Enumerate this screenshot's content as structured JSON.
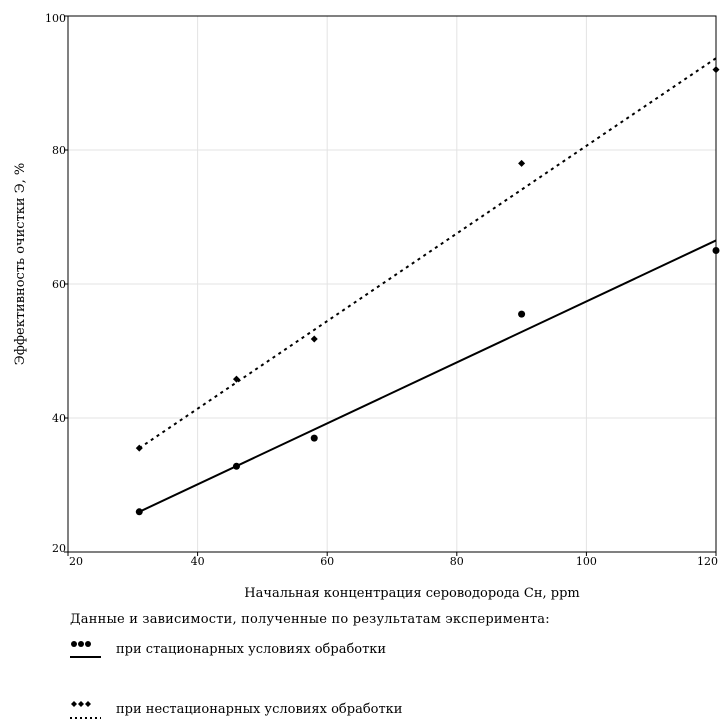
{
  "chart_data": {
    "type": "scatter",
    "xlabel": "Начальная концентрация сероводорода Сн, ppm",
    "ylabel": "Эффективность очистки Э, %",
    "xlim": [
      20,
      120
    ],
    "ylim": [
      20,
      100
    ],
    "x_ticks": [
      "20",
      "40",
      "60",
      "80",
      "100",
      "120"
    ],
    "y_ticks": [
      "20",
      "40",
      "60",
      "80",
      "100"
    ],
    "grid": true,
    "series": [
      {
        "name": "при стационарных условиях обработки",
        "marker": "circle",
        "line": "solid",
        "color": "#000000",
        "points": [
          [
            31,
            26
          ],
          [
            46,
            32.8
          ],
          [
            58,
            37
          ],
          [
            90,
            55.5
          ],
          [
            120,
            65
          ]
        ],
        "fit": [
          [
            31,
            26
          ],
          [
            120,
            66.5
          ]
        ]
      },
      {
        "name": "при нестационарных условиях обработки",
        "marker": "diamond",
        "line": "dotted",
        "color": "#000000",
        "points": [
          [
            31,
            35.5
          ],
          [
            46,
            45.8
          ],
          [
            58,
            51.8
          ],
          [
            90,
            78
          ],
          [
            120,
            92
          ]
        ],
        "fit": [
          [
            31,
            35.5
          ],
          [
            120,
            93.7
          ]
        ]
      }
    ]
  },
  "legend": {
    "heading": "Данные и зависимости, полученные по результатам эксперимента:"
  }
}
